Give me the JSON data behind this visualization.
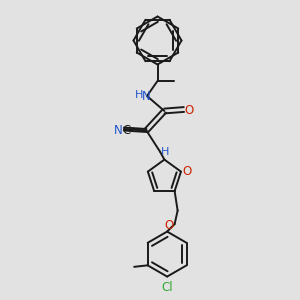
{
  "bg_color": "#e2e2e2",
  "bond_color": "#1a1a1a",
  "lw": 1.4,
  "fig_size": [
    3.0,
    3.0
  ],
  "dpi": 100,
  "colors": {
    "N": "#2255cc",
    "O": "#cc2200",
    "Cl": "#33aa33",
    "C": "#1a1a1a",
    "H": "#2255cc"
  }
}
